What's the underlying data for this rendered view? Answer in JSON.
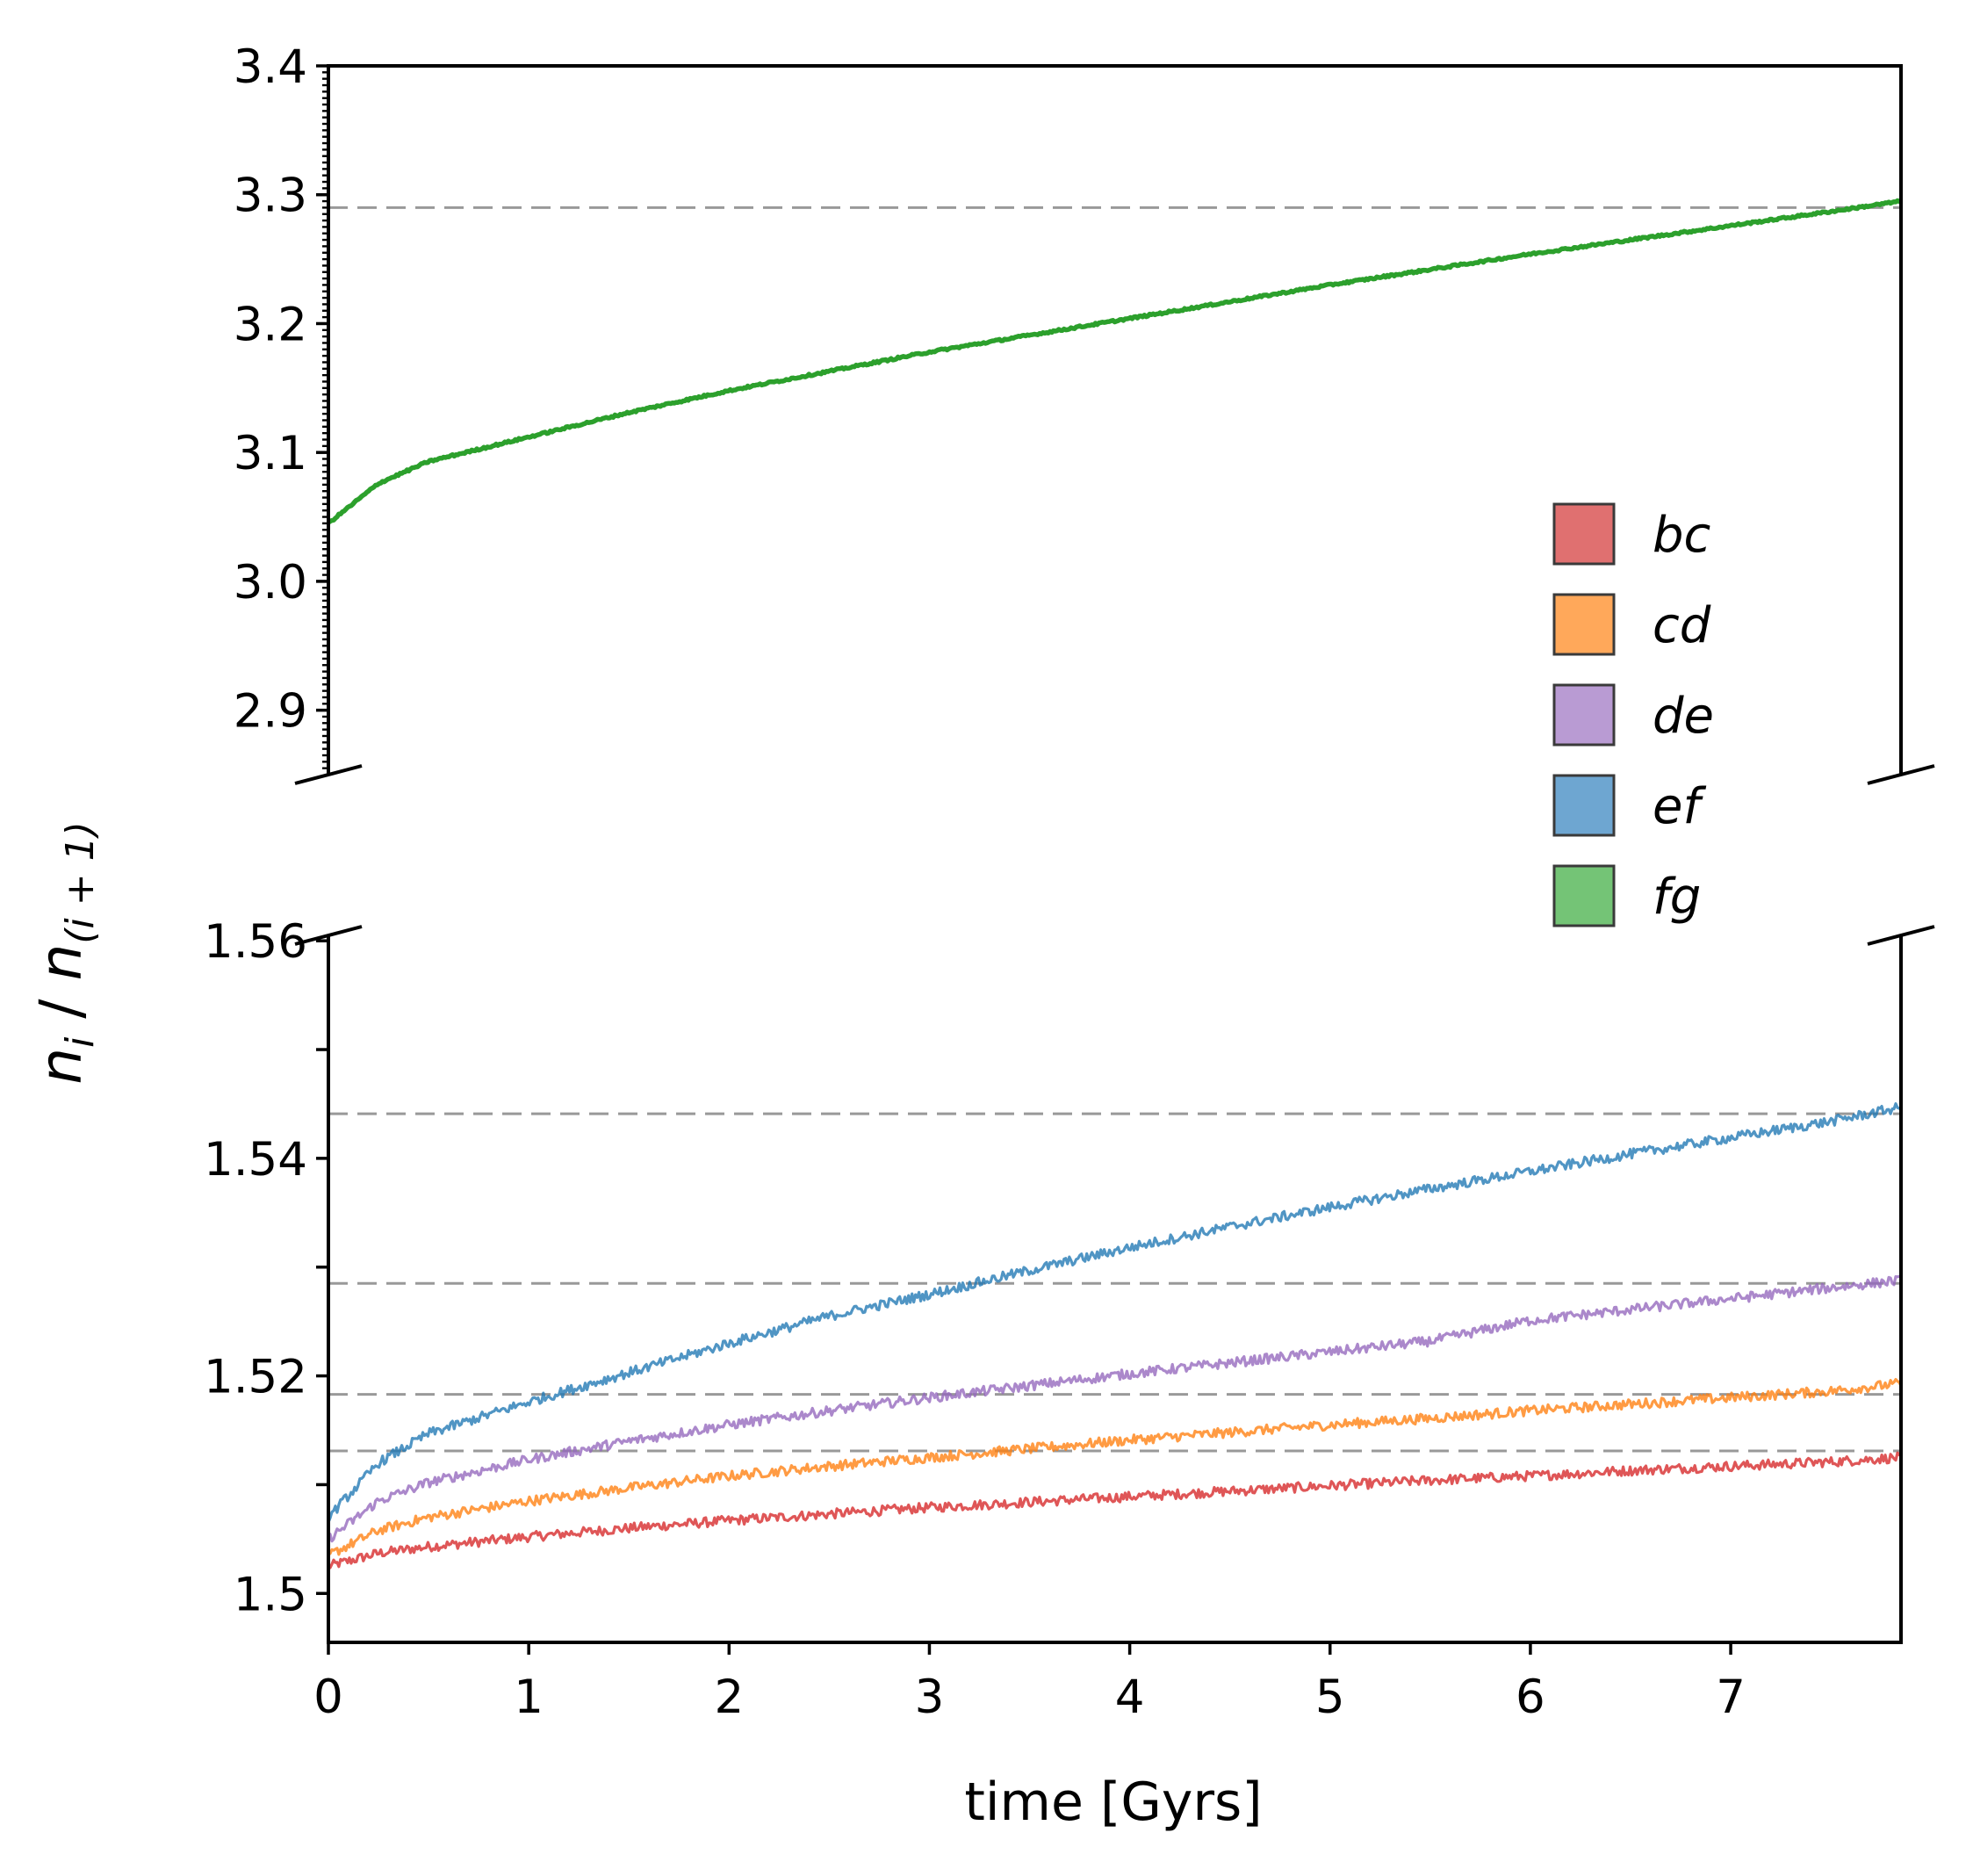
{
  "chart_data": {
    "type": "line",
    "xlabel": "time  [Gyrs]",
    "ylabel": {
      "n": "n",
      "i": "i",
      "slash": " / ",
      "sub": "(i + 1)"
    },
    "xlim": [
      0,
      7.85
    ],
    "x_ticks": [
      "0",
      "1",
      "2",
      "3",
      "4",
      "5",
      "6",
      "7"
    ],
    "x_tick_values": [
      0,
      1,
      2,
      3,
      4,
      5,
      6,
      7
    ],
    "broken_y_axis": true,
    "panels": {
      "upper": {
        "ylim": [
          2.85,
          3.4
        ],
        "y_ticks": [
          "2.9",
          "3.0",
          "3.1",
          "3.2",
          "3.3",
          "3.4"
        ],
        "y_tick_values": [
          2.9,
          3.0,
          3.1,
          3.2,
          3.3,
          3.4
        ],
        "reference_lines": [
          3.29
        ]
      },
      "lower": {
        "ylim": [
          1.4955,
          1.5605
        ],
        "y_ticks": [
          "1.5",
          "1.52",
          "1.54",
          "1.56"
        ],
        "y_tick_values": [
          1.5,
          1.52,
          1.54,
          1.56
        ],
        "minor_ticks": [
          1.51,
          1.53,
          1.55
        ],
        "reference_lines": [
          1.5131,
          1.5183,
          1.5285,
          1.5441
        ]
      }
    },
    "x": [
      0,
      0.25,
      0.5,
      1,
      1.5,
      2,
      2.5,
      3,
      3.5,
      4,
      4.5,
      5,
      5.5,
      6,
      6.5,
      7,
      7.5,
      7.85
    ],
    "series": [
      {
        "name": "bc",
        "color": "#d62728",
        "panel": "lower",
        "values": [
          1.5025,
          1.5037,
          1.5043,
          1.5052,
          1.506,
          1.5067,
          1.5073,
          1.5079,
          1.5084,
          1.5089,
          1.5094,
          1.5099,
          1.5104,
          1.5108,
          1.5113,
          1.5117,
          1.5121,
          1.5125
        ]
      },
      {
        "name": "cd",
        "color": "#ff7f0e",
        "panel": "lower",
        "values": [
          1.5035,
          1.5058,
          1.507,
          1.5085,
          1.5097,
          1.5108,
          1.5117,
          1.5125,
          1.5133,
          1.5141,
          1.5148,
          1.5155,
          1.5161,
          1.5168,
          1.5174,
          1.518,
          1.5186,
          1.5193
        ]
      },
      {
        "name": "de",
        "color": "#9467bd",
        "panel": "lower",
        "values": [
          1.505,
          1.5085,
          1.5102,
          1.5123,
          1.514,
          1.5155,
          1.5168,
          1.518,
          1.5191,
          1.5202,
          1.5212,
          1.5222,
          1.5232,
          1.5251,
          1.5261,
          1.5271,
          1.5281,
          1.5288
        ]
      },
      {
        "name": "ef",
        "color": "#1f77b4",
        "panel": "lower",
        "values": [
          1.507,
          1.512,
          1.5147,
          1.5176,
          1.5203,
          1.523,
          1.5255,
          1.5275,
          1.5297,
          1.5318,
          1.5337,
          1.5355,
          1.5372,
          1.5388,
          1.5404,
          1.5419,
          1.5434,
          1.5447
        ]
      },
      {
        "name": "fg",
        "color": "#2ca02c",
        "panel": "upper",
        "values": [
          3.045,
          3.076,
          3.093,
          3.112,
          3.131,
          3.148,
          3.163,
          3.178,
          3.191,
          3.204,
          3.217,
          3.23,
          3.242,
          3.254,
          3.265,
          3.276,
          3.287,
          3.295
        ]
      }
    ],
    "legend": {
      "position": "right",
      "entries": [
        {
          "label": "bc",
          "color": "#e07070"
        },
        {
          "label": "cd",
          "color": "#ffa85a"
        },
        {
          "label": "de",
          "color": "#b99bd3"
        },
        {
          "label": "ef",
          "color": "#6ea6d1"
        },
        {
          "label": "fg",
          "color": "#74c476"
        }
      ]
    },
    "reference_line_color": "#999999"
  }
}
